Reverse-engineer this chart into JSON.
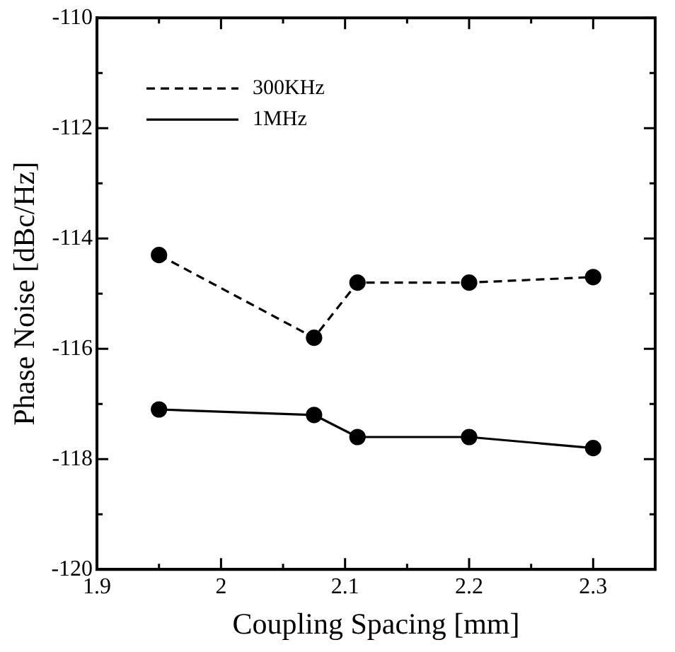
{
  "chart_data": {
    "type": "line",
    "xlabel": "Coupling Spacing [mm]",
    "ylabel": "Phase Noise [dBc/Hz]",
    "xlim": [
      1.9,
      2.35
    ],
    "xticks": [
      1.9,
      {
        "value": 1.95,
        "label": null
      },
      2,
      {
        "value": 2.05,
        "label": null
      },
      2.1,
      {
        "value": 2.15,
        "label": null
      },
      2.2,
      {
        "value": 2.25,
        "label": null
      },
      2.3
    ],
    "ylim": [
      -120,
      -110
    ],
    "yticks": [
      -120,
      {
        "value": -119,
        "label": null
      },
      -118,
      {
        "value": -117,
        "label": null
      },
      -116,
      {
        "value": -115,
        "label": null
      },
      -114,
      {
        "value": -113,
        "label": null
      },
      -112,
      {
        "value": -111,
        "label": null
      },
      -110
    ],
    "grid": false,
    "legend": "top left",
    "marker": "circle",
    "x": [
      1.95,
      2.075,
      2.11,
      2.2,
      2.3
    ],
    "series": [
      {
        "name": "300KHz",
        "color": "#000000",
        "line_style": "dashed",
        "values": [
          -114.3,
          -115.8,
          -114.8,
          -114.8,
          -114.7
        ]
      },
      {
        "name": "1MHz",
        "color": "#000000",
        "line_style": "solid",
        "values": [
          -117.1,
          -117.2,
          -117.6,
          -117.6,
          -117.8
        ]
      }
    ]
  }
}
